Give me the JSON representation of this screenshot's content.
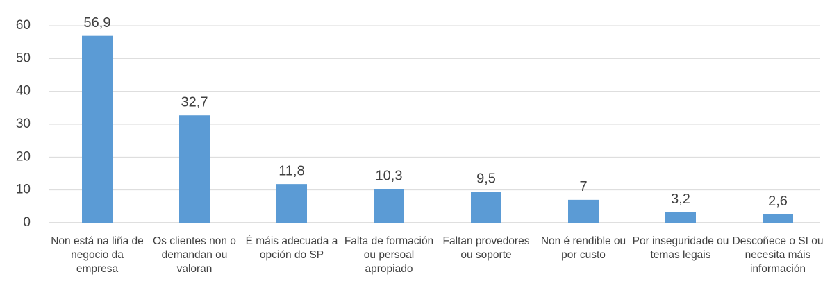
{
  "chart_data": {
    "type": "bar",
    "categories": [
      "Non está na liña de negocio da empresa",
      "Os clientes non o demandan ou valoran",
      "É máis adecuada a opción do SP",
      "Falta de formación ou persoal apropiado",
      "Faltan provedores ou soporte",
      "Non é rendible ou por custo",
      "Por inseguridade ou temas legais",
      "Descoñece o SI ou necesita máis información"
    ],
    "values": [
      56.9,
      32.7,
      11.8,
      10.3,
      9.5,
      7,
      3.2,
      2.6
    ],
    "value_labels": [
      "56,9",
      "32,7",
      "11,8",
      "10,3",
      "9,5",
      "7",
      "3,2",
      "2,6"
    ],
    "color": "#5b9bd5",
    "ylim": [
      0,
      60
    ],
    "yticks": [
      0,
      10,
      20,
      30,
      40,
      50,
      60
    ],
    "grid": true
  }
}
